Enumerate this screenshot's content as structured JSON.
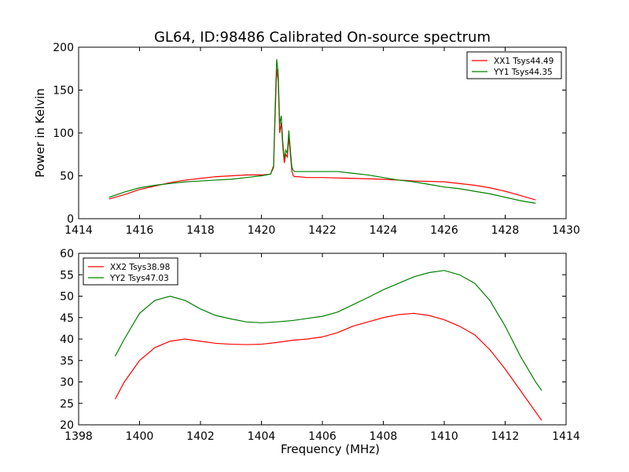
{
  "figure": {
    "title": "GL64, ID:98486 Calibrated On-source spectrum"
  },
  "chart_data": [
    {
      "type": "line",
      "title": "GL64, ID:98486 Calibrated On-source spectrum",
      "xlabel": "",
      "ylabel": "Power in Kelvin",
      "xlim": [
        1414,
        1430
      ],
      "ylim": [
        0,
        200
      ],
      "xticks": [
        "1414",
        "1416",
        "1418",
        "1420",
        "1422",
        "1424",
        "1426",
        "1428",
        "1430"
      ],
      "yticks": [
        "0",
        "50",
        "100",
        "150",
        "200"
      ],
      "grid": false,
      "legend": "top-right",
      "series": [
        {
          "name": "XX1 Tsys44.49",
          "color": "#ff0000",
          "x": [
            1415.0,
            1415.5,
            1416.0,
            1416.5,
            1417.0,
            1417.5,
            1418.0,
            1418.5,
            1419.0,
            1419.5,
            1420.0,
            1420.3,
            1420.4,
            1420.45,
            1420.5,
            1420.55,
            1420.6,
            1420.65,
            1420.7,
            1420.75,
            1420.8,
            1420.85,
            1420.9,
            1420.95,
            1421.0,
            1421.05,
            1421.1,
            1421.2,
            1421.5,
            1422.0,
            1423.0,
            1424.0,
            1425.0,
            1426.0,
            1427.0,
            1427.5,
            1428.0,
            1428.5,
            1429.0
          ],
          "values": [
            23,
            28,
            34,
            38,
            42,
            45,
            47,
            49,
            50,
            51,
            51,
            52,
            60,
            120,
            175,
            160,
            100,
            112,
            85,
            65,
            75,
            72,
            95,
            75,
            55,
            50,
            49,
            49,
            48,
            48,
            47,
            46,
            44,
            43,
            39,
            36,
            32,
            27,
            22
          ]
        },
        {
          "name": "YY1 Tsys44.35",
          "color": "#008000",
          "x": [
            1415.0,
            1415.5,
            1416.0,
            1416.5,
            1417.0,
            1417.5,
            1418.0,
            1418.5,
            1419.0,
            1419.5,
            1420.0,
            1420.3,
            1420.4,
            1420.45,
            1420.5,
            1420.55,
            1420.6,
            1420.65,
            1420.7,
            1420.75,
            1420.8,
            1420.85,
            1420.9,
            1420.95,
            1421.0,
            1421.05,
            1421.1,
            1421.2,
            1421.5,
            1422.0,
            1422.5,
            1423.0,
            1423.5,
            1424.0,
            1424.5,
            1425.0,
            1425.5,
            1426.0,
            1426.5,
            1427.0,
            1427.5,
            1428.0,
            1428.5,
            1429.0
          ],
          "values": [
            25,
            31,
            36,
            39,
            41,
            43,
            44,
            45,
            46,
            48,
            50,
            52,
            62,
            130,
            186,
            170,
            110,
            120,
            90,
            70,
            80,
            76,
            103,
            80,
            60,
            56,
            55,
            55,
            55,
            55,
            55,
            53,
            51,
            48,
            45,
            43,
            40,
            37,
            35,
            32,
            29,
            25,
            21,
            18
          ]
        }
      ]
    },
    {
      "type": "line",
      "title": "",
      "xlabel": "Frequency (MHz)",
      "ylabel": "",
      "xlim": [
        1398,
        1414
      ],
      "ylim": [
        20,
        60
      ],
      "xticks": [
        "1398",
        "1400",
        "1402",
        "1404",
        "1406",
        "1408",
        "1410",
        "1412",
        "1414"
      ],
      "yticks": [
        "20",
        "25",
        "30",
        "35",
        "40",
        "45",
        "50",
        "55",
        "60"
      ],
      "grid": false,
      "legend": "top-left",
      "series": [
        {
          "name": "XX2 Tsys38.98",
          "color": "#ff0000",
          "x": [
            1399.2,
            1399.5,
            1400.0,
            1400.5,
            1401.0,
            1401.5,
            1402.0,
            1402.5,
            1403.0,
            1403.5,
            1404.0,
            1404.5,
            1405.0,
            1405.5,
            1406.0,
            1406.5,
            1407.0,
            1407.5,
            1408.0,
            1408.5,
            1409.0,
            1409.5,
            1410.0,
            1410.5,
            1411.0,
            1411.5,
            1412.0,
            1412.5,
            1413.0,
            1413.2
          ],
          "values": [
            26,
            30,
            35,
            38,
            39.5,
            40,
            39.5,
            39,
            38.8,
            38.7,
            38.8,
            39.2,
            39.7,
            40,
            40.5,
            41.5,
            43,
            44,
            45,
            45.7,
            46,
            45.5,
            44.5,
            43,
            41,
            37.5,
            33,
            28,
            23,
            21
          ]
        },
        {
          "name": "YY2 Tsys47.03",
          "color": "#008000",
          "x": [
            1399.2,
            1399.5,
            1400.0,
            1400.5,
            1401.0,
            1401.5,
            1402.0,
            1402.5,
            1403.0,
            1403.5,
            1404.0,
            1404.5,
            1405.0,
            1405.5,
            1406.0,
            1406.5,
            1407.0,
            1407.5,
            1408.0,
            1408.5,
            1409.0,
            1409.5,
            1410.0,
            1410.5,
            1411.0,
            1411.5,
            1412.0,
            1412.5,
            1413.0,
            1413.2
          ],
          "values": [
            36,
            40,
            46,
            49,
            50,
            49,
            47,
            45.5,
            44.7,
            44,
            43.8,
            44,
            44.3,
            44.8,
            45.3,
            46.3,
            48,
            49.7,
            51.5,
            53,
            54.5,
            55.5,
            56,
            55,
            53,
            49,
            43,
            36,
            30,
            28
          ]
        }
      ]
    }
  ]
}
